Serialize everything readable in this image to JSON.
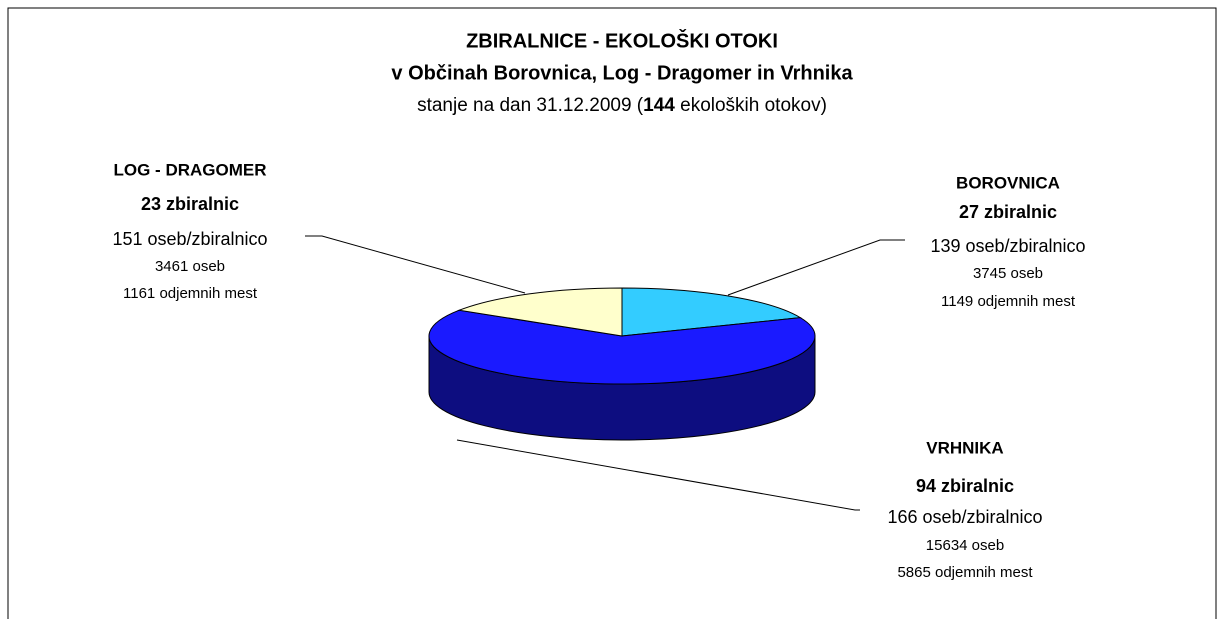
{
  "chart_data": {
    "type": "pie3d",
    "title": "ZBIRALNICE - EKOLOŠKI OTOKI",
    "subtitle_line": "v Občinah Borovnica, Log - Dragomer in Vrhnika",
    "subtitle": {
      "before": "stanje na dan 31.12.2009 (",
      "bold": "144",
      "after": " ekoloških otokov)"
    },
    "categories": [
      "BOROVNICA",
      "VRHNIKA",
      "LOG - DRAGOMER"
    ],
    "values": [
      27,
      94,
      23
    ],
    "value_labels": [
      "27 zbiralnic",
      "94 zbiralnic",
      "23 zbiralnic"
    ],
    "details": [
      [
        "139 oseb/zbiralnico",
        "3745 oseb",
        "1149 odjemnih mest"
      ],
      [
        "166 oseb/zbiralnico",
        "15634 oseb",
        "5865 odjemnih mest"
      ],
      [
        "151 oseb/zbiralnico",
        "3461 oseb",
        "1161 odjemnih mest"
      ]
    ],
    "colors": [
      "#33ccff",
      "#1a1aff",
      "#ffffcc"
    ]
  }
}
